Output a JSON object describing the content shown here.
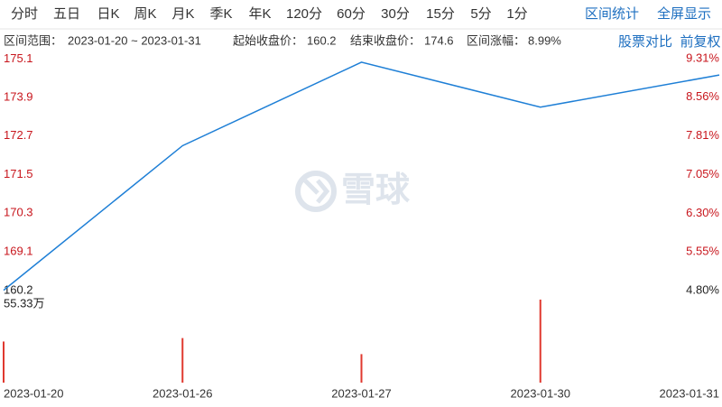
{
  "toolbar": {
    "periods": [
      "分时",
      "五日",
      "日K",
      "周K",
      "月K",
      "季K",
      "年K",
      "120分",
      "60分",
      "30分",
      "15分",
      "5分",
      "1分"
    ],
    "actions": [
      "区间统计",
      "全屏显示"
    ]
  },
  "summary": {
    "range_label": "区间范围：",
    "range": "2023-01-20 ~ 2023-01-31",
    "start_label": "起始收盘价：",
    "start_close": "160.2",
    "end_label": "结束收盘价：",
    "end_close": "174.6",
    "change_label": "区间涨幅：",
    "change": "8.99%",
    "links": [
      "股票对比",
      "前复权"
    ]
  },
  "chart_data": [
    {
      "type": "line",
      "categories": [
        "2023-01-20",
        "2023-01-26",
        "2023-01-27",
        "2023-01-30",
        "2023-01-31"
      ],
      "values": [
        167.9,
        172.4,
        175.0,
        173.6,
        174.6
      ],
      "color": "#1e7fd6",
      "ylim": [
        167.89,
        175.11
      ],
      "yticks": [
        169.1,
        170.3,
        171.5,
        172.7,
        173.9,
        175.1
      ],
      "axis_min_label": "160.2",
      "y2lim": [
        4.8,
        9.31
      ],
      "y2ticks": [
        {
          "value": 4.8,
          "label": "4.80%"
        },
        {
          "value": 5.55,
          "label": "5.55%"
        },
        {
          "value": 6.3,
          "label": "6.30%"
        },
        {
          "value": 7.05,
          "label": "7.05%"
        },
        {
          "value": 7.81,
          "label": "7.81%"
        },
        {
          "value": 8.56,
          "label": "8.56%"
        },
        {
          "value": 9.31,
          "label": "9.31%"
        }
      ],
      "watermark": "雪球"
    },
    {
      "type": "bar",
      "values": [
        27.4,
        29.7,
        19.0,
        55.33,
        null
      ],
      "color": "#e0382f",
      "ylim": [
        0,
        55.33
      ],
      "yticks": [
        {
          "value": 55.33,
          "label": "55.33万"
        }
      ]
    }
  ]
}
